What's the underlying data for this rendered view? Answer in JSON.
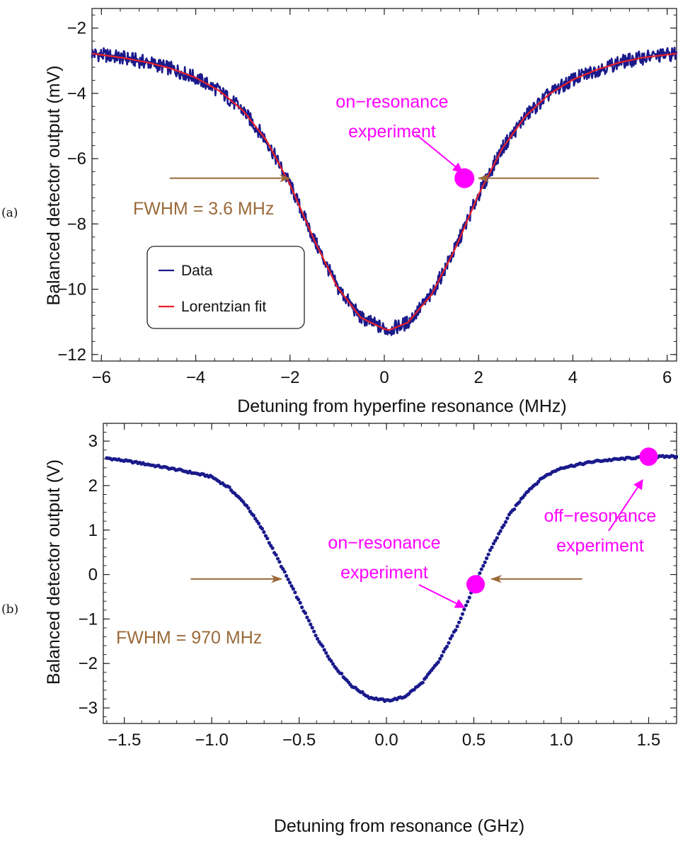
{
  "colors": {
    "data": "#1a1a8c",
    "fit": "#e8202a",
    "marker": "#ff00ff",
    "fwhm": "#9a6a3a"
  },
  "chart_data": [
    {
      "panel_label": "(a)",
      "type": "line",
      "xlabel": "Detuning from hyperfine resonance (MHz)",
      "ylabel": "Balanced detector output (mV)",
      "xlim": [
        -6.2,
        6.2
      ],
      "ylim": [
        -12.2,
        -1.4
      ],
      "xticks": [
        -6,
        -4,
        -2,
        0,
        2,
        4,
        6
      ],
      "xtick_labels": [
        "−6",
        "−4",
        "−2",
        "0",
        "2",
        "4",
        "6"
      ],
      "yticks": [
        -12,
        -10,
        -8,
        -6,
        -4,
        -2
      ],
      "ytick_labels": [
        "−12",
        "−10",
        "−8",
        "−6",
        "−4",
        "−2"
      ],
      "grid": false,
      "legend": {
        "position": "lower-left",
        "entries": [
          "Data",
          "Lorentzian fit"
        ]
      },
      "series": [
        {
          "name": "Data",
          "style": "noisy-line",
          "x": [
            -6.2,
            -5.5,
            -5.0,
            -4.5,
            -4.0,
            -3.5,
            -3.0,
            -2.5,
            -2.0,
            -1.5,
            -1.0,
            -0.5,
            0.0,
            0.1,
            0.5,
            1.0,
            1.5,
            2.0,
            2.5,
            3.0,
            3.5,
            4.0,
            4.5,
            5.0,
            5.5,
            6.2
          ],
          "y": [
            -2.78,
            -2.92,
            -3.06,
            -3.25,
            -3.52,
            -3.92,
            -4.52,
            -5.44,
            -6.79,
            -8.45,
            -9.93,
            -10.87,
            -11.22,
            -11.25,
            -11.02,
            -10.17,
            -8.77,
            -7.1,
            -5.69,
            -4.69,
            -4.02,
            -3.58,
            -3.28,
            -3.05,
            -2.9,
            -2.78
          ]
        },
        {
          "name": "Lorentzian fit",
          "style": "line",
          "x": [
            -6.2,
            -5.5,
            -5.0,
            -4.5,
            -4.0,
            -3.5,
            -3.0,
            -2.5,
            -2.0,
            -1.5,
            -1.0,
            -0.5,
            0.0,
            0.1,
            0.5,
            1.0,
            1.5,
            2.0,
            2.5,
            3.0,
            3.5,
            4.0,
            4.5,
            5.0,
            5.5,
            6.2
          ],
          "y": [
            -2.78,
            -2.92,
            -3.06,
            -3.25,
            -3.52,
            -3.92,
            -4.52,
            -5.44,
            -6.79,
            -8.45,
            -9.93,
            -10.87,
            -11.22,
            -11.25,
            -11.02,
            -10.17,
            -8.77,
            -7.1,
            -5.69,
            -4.69,
            -4.02,
            -3.58,
            -3.28,
            -3.05,
            -2.9,
            -2.78
          ]
        }
      ],
      "marker_points": [
        {
          "x": 1.7,
          "y": -6.6
        }
      ],
      "annotations": {
        "on_resonance": [
          "on−resonance",
          "experiment"
        ],
        "fwhm": "FWHM = 3.6 MHz",
        "fwhm_arrow_y": -6.6,
        "fwhm_left_arrow_x": [
          -4.55,
          -2.0
        ],
        "fwhm_right_arrow_x": [
          4.55,
          2.0
        ]
      }
    },
    {
      "panel_label": "(b)",
      "type": "scatter",
      "xlabel": "Detuning from resonance (GHz)",
      "ylabel": "Balanced detector output (V)",
      "xlim": [
        -1.62,
        1.66
      ],
      "ylim": [
        -3.35,
        3.4
      ],
      "xticks": [
        -1.5,
        -1.0,
        -0.5,
        0.0,
        0.5,
        1.0,
        1.5
      ],
      "xtick_labels": [
        "−1.5",
        "−1.0",
        "−0.5",
        "0.0",
        "0.5",
        "1.0",
        "1.5"
      ],
      "yticks": [
        -3,
        -2,
        -1,
        0,
        1,
        2,
        3
      ],
      "ytick_labels": [
        "−3",
        "−2",
        "−1",
        "0",
        "1",
        "2",
        "3"
      ],
      "grid": false,
      "series": [
        {
          "x": [
            -1.6,
            -1.4,
            -1.2,
            -1.0,
            -0.9,
            -0.8,
            -0.7,
            -0.6,
            -0.5,
            -0.4,
            -0.3,
            -0.2,
            -0.1,
            0.0,
            0.1,
            0.2,
            0.3,
            0.4,
            0.5,
            0.6,
            0.7,
            0.8,
            0.9,
            1.0,
            1.2,
            1.4,
            1.5,
            1.65
          ],
          "y": [
            2.62,
            2.5,
            2.36,
            2.2,
            1.95,
            1.55,
            0.95,
            0.18,
            -0.6,
            -1.4,
            -2.05,
            -2.5,
            -2.76,
            -2.84,
            -2.76,
            -2.45,
            -1.95,
            -1.2,
            -0.28,
            0.6,
            1.32,
            1.85,
            2.2,
            2.4,
            2.55,
            2.62,
            2.64,
            2.66
          ]
        }
      ],
      "marker_points": [
        {
          "x": 0.51,
          "y": -0.22
        },
        {
          "x": 1.5,
          "y": 2.65
        }
      ],
      "annotations": {
        "on_resonance": [
          "on−resonance",
          "experiment"
        ],
        "off_resonance": [
          "off−resonance",
          "experiment"
        ],
        "fwhm": "FWHM = 970 MHz",
        "fwhm_arrow_y": -0.1,
        "fwhm_left_arrow_x": [
          -1.12,
          -0.6
        ],
        "fwhm_right_arrow_x": [
          1.12,
          0.6
        ]
      }
    }
  ]
}
